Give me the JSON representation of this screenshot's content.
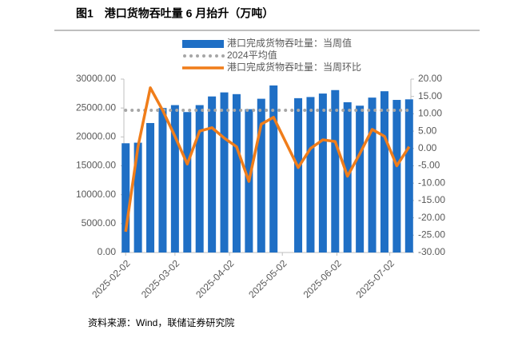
{
  "chart_data": {
    "type": "bar",
    "title": "图1　港口货物吞吐量 6 月抬升（万吨）",
    "source": "资料来源：Wind，联储证券研究院",
    "x": [
      "2025-02-02",
      "2025-02-09",
      "2025-02-16",
      "2025-02-23",
      "2025-03-02",
      "2025-03-09",
      "2025-03-16",
      "2025-03-23",
      "2025-03-30",
      "2025-04-06",
      "2025-04-13",
      "2025-04-20",
      "2025-04-27",
      "2025-05-11",
      "2025-05-18",
      "2025-05-25",
      "2025-06-01",
      "2025-06-08",
      "2025-06-15",
      "2025-06-22",
      "2025-06-29",
      "2025-07-06",
      "2025-07-13"
    ],
    "xlim": [
      "2025-02-01",
      "2025-07-14"
    ],
    "xticks": [
      "2025-02-02",
      "2025-03-02",
      "2025-04-02",
      "2025-05-02",
      "2025-06-02",
      "2025-07-02"
    ],
    "series": [
      {
        "name": "港口完成货物吞吐量：当周值",
        "type": "bar",
        "color": "#1f6fc5",
        "values": [
          18900,
          19000,
          22400,
          25000,
          25500,
          24300,
          25500,
          27000,
          27700,
          27400,
          24800,
          26600,
          28900,
          26700,
          26900,
          27500,
          28100,
          26000,
          25400,
          26800,
          27900,
          26400,
          26500
        ]
      },
      {
        "name": "2024平均值",
        "type": "dots",
        "color": "#a6a6a6",
        "values": [
          24600,
          24600,
          24600,
          24600,
          24600,
          24600,
          24600,
          24600,
          24600,
          24600,
          24600,
          24600,
          24600,
          24600,
          24600,
          24600,
          24600,
          24600,
          24600,
          24600,
          24600,
          24600,
          24600
        ]
      },
      {
        "name": "港口完成货物吞吐量：当周环比",
        "type": "line",
        "axis": "y2",
        "color": "#f07d1a",
        "values": [
          -24,
          0.5,
          17.5,
          11,
          3.5,
          -4.5,
          5,
          6,
          3,
          0.5,
          -9.5,
          7,
          9,
          -5.5,
          0,
          2.5,
          2,
          -8,
          -1.5,
          5.5,
          3.5,
          -5,
          0.5
        ]
      }
    ],
    "ylim": [
      0,
      30000
    ],
    "yticks": [
      {
        "value": 0,
        "label": "0.00"
      },
      {
        "value": 5000,
        "label": "5000.00"
      },
      {
        "value": 10000,
        "label": "10000.00"
      },
      {
        "value": 15000,
        "label": "15000.00"
      },
      {
        "value": 20000,
        "label": "20000.00"
      },
      {
        "value": 25000,
        "label": "25000.00"
      },
      {
        "value": 30000,
        "label": "30000.00"
      }
    ],
    "y2lim": [
      -30,
      20
    ],
    "y2ticks": [
      {
        "value": -30,
        "label": "-30.00"
      },
      {
        "value": -25,
        "label": "-25.00"
      },
      {
        "value": -20,
        "label": "-20.00"
      },
      {
        "value": -15,
        "label": "-15.00"
      },
      {
        "value": -10,
        "label": "-10.00"
      },
      {
        "value": -5,
        "label": "-5.00"
      },
      {
        "value": 0,
        "label": "0.00"
      },
      {
        "value": 5,
        "label": "5.00"
      },
      {
        "value": 10,
        "label": "10.00"
      },
      {
        "value": 15,
        "label": "15.00"
      },
      {
        "value": 20,
        "label": "20.00"
      }
    ]
  }
}
